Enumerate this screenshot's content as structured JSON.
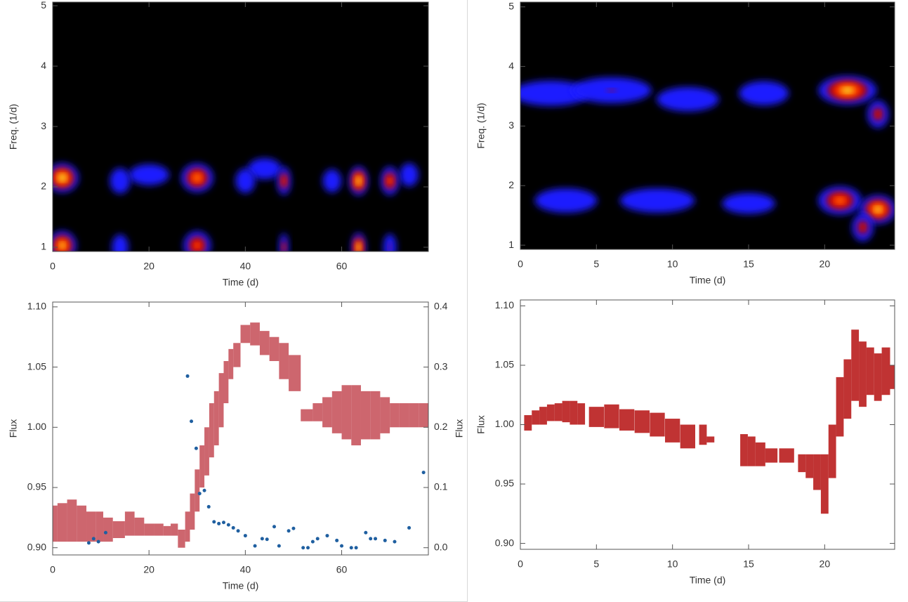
{
  "chart_data": [
    {
      "type": "spectrogram",
      "xlabel": "Time (d)",
      "ylabel": "Freq. (1/d)",
      "xlim": [
        0,
        78
      ],
      "ylim": [
        0.93,
        5.06
      ],
      "xticks": [
        0,
        20,
        40,
        60
      ],
      "yticks": [
        1,
        2,
        3,
        4,
        5
      ],
      "blobs": [
        {
          "x": 20,
          "y": 2.2,
          "w": 12,
          "intensity": 0.15
        },
        {
          "x": 44,
          "y": 2.3,
          "w": 10,
          "intensity": 0.15
        },
        {
          "x": 58,
          "y": 2.1,
          "w": 5,
          "intensity": 0.2
        },
        {
          "x": 74,
          "y": 2.2,
          "w": 5,
          "intensity": 0.2
        },
        {
          "x": 2,
          "y": 2.15,
          "w": 7,
          "intensity": 1.0
        },
        {
          "x": 2,
          "y": 1.03,
          "w": 6,
          "intensity": 0.95
        },
        {
          "x": 14,
          "y": 2.1,
          "w": 5,
          "intensity": 0.3
        },
        {
          "x": 14,
          "y": 1.0,
          "w": 4,
          "intensity": 0.3
        },
        {
          "x": 30,
          "y": 2.15,
          "w": 7,
          "intensity": 0.85
        },
        {
          "x": 30,
          "y": 1.03,
          "w": 6,
          "intensity": 0.75
        },
        {
          "x": 40,
          "y": 2.1,
          "w": 5,
          "intensity": 0.25
        },
        {
          "x": 48,
          "y": 2.1,
          "w": 3,
          "intensity": 0.7
        },
        {
          "x": 48,
          "y": 1.0,
          "w": 2,
          "intensity": 0.6
        },
        {
          "x": 63.5,
          "y": 2.1,
          "w": 4,
          "intensity": 1.0
        },
        {
          "x": 63.5,
          "y": 1.0,
          "w": 3,
          "intensity": 1.0
        },
        {
          "x": 70,
          "y": 2.1,
          "w": 4,
          "intensity": 0.75
        },
        {
          "x": 70,
          "y": 1.0,
          "w": 3,
          "intensity": 0.4
        }
      ]
    },
    {
      "type": "spectrogram",
      "xlabel": "Time (d)",
      "ylabel": "Freq. (1/d)",
      "xlim": [
        0,
        24.6
      ],
      "ylim": [
        0.93,
        5.08
      ],
      "xticks": [
        0,
        5,
        10,
        15,
        20
      ],
      "yticks": [
        1,
        2,
        3,
        4,
        5
      ],
      "blobs": [
        {
          "x": 2,
          "y": 3.55,
          "w": 6,
          "intensity": 0.3
        },
        {
          "x": 6,
          "y": 3.6,
          "w": 6,
          "intensity": 0.35
        },
        {
          "x": 11,
          "y": 3.45,
          "w": 5,
          "intensity": 0.25
        },
        {
          "x": 16,
          "y": 3.55,
          "w": 4,
          "intensity": 0.25
        },
        {
          "x": 3,
          "y": 1.75,
          "w": 5,
          "intensity": 0.25
        },
        {
          "x": 9,
          "y": 1.75,
          "w": 6,
          "intensity": 0.25
        },
        {
          "x": 15,
          "y": 1.7,
          "w": 5,
          "intensity": 0.15
        },
        {
          "x": 21.5,
          "y": 3.6,
          "w": 4,
          "intensity": 0.95
        },
        {
          "x": 23.5,
          "y": 3.2,
          "w": 1.5,
          "intensity": 0.6
        },
        {
          "x": 21,
          "y": 1.75,
          "w": 3,
          "intensity": 0.8
        },
        {
          "x": 23.5,
          "y": 1.6,
          "w": 2.5,
          "intensity": 0.95
        },
        {
          "x": 22.5,
          "y": 1.3,
          "w": 1.5,
          "intensity": 0.6
        }
      ]
    },
    {
      "type": "lightcurve",
      "xlabel": "Time (d)",
      "ylabel": "Flux",
      "y2label": "Flux",
      "xlim": [
        0,
        78
      ],
      "ylim": [
        0.894,
        1.104
      ],
      "y2lim": [
        -0.012,
        0.408
      ],
      "xticks": [
        0,
        20,
        40,
        60
      ],
      "yticks": [
        {
          "value": 0.9,
          "label": "0.90"
        },
        {
          "value": 0.95,
          "label": "0.95"
        },
        {
          "value": 1.0,
          "label": "1.00"
        },
        {
          "value": 1.05,
          "label": "1.05"
        },
        {
          "value": 1.1,
          "label": "1.10"
        }
      ],
      "y2ticks": [
        {
          "value": 0,
          "label": "0.0"
        },
        0.1,
        0.2,
        0.3,
        0.4
      ],
      "series": [
        {
          "color": "#c0404a",
          "x": [
            0,
            2,
            4,
            6,
            8,
            10,
            11,
            14,
            16,
            18,
            20,
            22,
            24,
            25,
            27,
            28,
            29,
            30,
            31,
            32,
            33,
            34,
            35,
            36,
            37,
            38,
            40,
            42,
            44,
            46,
            48,
            50,
            53,
            55,
            57,
            59,
            61,
            63,
            65,
            67,
            69,
            71,
            73,
            75,
            77
          ],
          "low": [
            0.905,
            0.905,
            0.905,
            0.905,
            0.905,
            0.905,
            0.905,
            0.908,
            0.91,
            0.91,
            0.91,
            0.91,
            0.91,
            0.91,
            0.9,
            0.905,
            0.915,
            0.93,
            0.95,
            0.96,
            0.975,
            0.985,
            1.0,
            1.02,
            1.04,
            1.05,
            1.07,
            1.068,
            1.06,
            1.055,
            1.04,
            1.03,
            1.005,
            1.005,
            1.0,
            0.995,
            0.99,
            0.985,
            0.99,
            0.99,
            0.995,
            1.0,
            1.0,
            1.0,
            1.0
          ],
          "high": [
            0.935,
            0.937,
            0.94,
            0.935,
            0.93,
            0.93,
            0.925,
            0.922,
            0.93,
            0.925,
            0.92,
            0.92,
            0.918,
            0.92,
            0.915,
            0.93,
            0.945,
            0.965,
            0.985,
            1.0,
            1.02,
            1.03,
            1.045,
            1.055,
            1.065,
            1.07,
            1.085,
            1.087,
            1.08,
            1.075,
            1.07,
            1.06,
            1.015,
            1.02,
            1.025,
            1.03,
            1.035,
            1.035,
            1.03,
            1.03,
            1.025,
            1.02,
            1.02,
            1.02,
            1.02
          ]
        },
        {
          "color": "#1f5fa0",
          "axis": "y2",
          "x": [
            7.5,
            8.5,
            9.5,
            11,
            28,
            28.8,
            29.8,
            30.5,
            31.5,
            32.4,
            33.5,
            34.5,
            35.5,
            36.5,
            37.5,
            38.5,
            40,
            42,
            43.5,
            44.5,
            46,
            47,
            49,
            50,
            52,
            53,
            54,
            55,
            57,
            59,
            60,
            62,
            63,
            65,
            66,
            67,
            69,
            71,
            74,
            77
          ],
          "values": [
            0.008,
            0.015,
            0.01,
            0.025,
            0.285,
            0.21,
            0.165,
            0.09,
            0.095,
            0.068,
            0.043,
            0.04,
            0.042,
            0.038,
            0.033,
            0.028,
            0.02,
            0.003,
            0.015,
            0.014,
            0.035,
            0.003,
            0.028,
            0.032,
            0.0,
            0.0,
            0.01,
            0.015,
            0.02,
            0.012,
            0.003,
            0.0,
            0.0,
            0.025,
            0.015,
            0.015,
            0.012,
            0.01,
            0.033,
            0.125
          ]
        }
      ]
    },
    {
      "type": "lightcurve",
      "xlabel": "Time (d)",
      "ylabel": "Flux",
      "xlim": [
        0,
        24.6
      ],
      "ylim": [
        0.895,
        1.105
      ],
      "xticks": [
        0,
        5,
        10,
        15,
        20
      ],
      "yticks": [
        {
          "value": 0.9,
          "label": "0.90"
        },
        {
          "value": 0.95,
          "label": "0.95"
        },
        {
          "value": 1.0,
          "label": "1.00"
        },
        {
          "value": 1.05,
          "label": "1.05"
        },
        {
          "value": 1.1,
          "label": "1.10"
        }
      ],
      "series": [
        {
          "color": "#b00000",
          "x": [
            0.5,
            1,
            1.5,
            2,
            2.5,
            3,
            3.5,
            4,
            5,
            6,
            7,
            8,
            9,
            10,
            11,
            12,
            12.5,
            14.7,
            15.2,
            15.7,
            16.5,
            17.5,
            18.5,
            19,
            19.5,
            20,
            20.5,
            21,
            21.5,
            22,
            22.5,
            23,
            23.5,
            24,
            24.6
          ],
          "low": [
            0.995,
            1.0,
            1.0,
            1.003,
            1.003,
            1.002,
            1.0,
            1.0,
            0.998,
            0.997,
            0.995,
            0.993,
            0.99,
            0.985,
            0.98,
            0.983,
            0.985,
            0.965,
            0.965,
            0.965,
            0.968,
            0.968,
            0.96,
            0.955,
            0.945,
            0.925,
            0.955,
            0.99,
            1.005,
            1.02,
            1.015,
            1.025,
            1.02,
            1.025,
            1.03
          ],
          "high": [
            1.008,
            1.012,
            1.015,
            1.017,
            1.018,
            1.02,
            1.02,
            1.018,
            1.015,
            1.017,
            1.013,
            1.012,
            1.01,
            1.005,
            1.0,
            1.0,
            0.99,
            0.992,
            0.99,
            0.985,
            0.98,
            0.98,
            0.975,
            0.975,
            0.975,
            0.975,
            1.0,
            1.04,
            1.055,
            1.08,
            1.07,
            1.065,
            1.06,
            1.065,
            1.05
          ]
        }
      ]
    }
  ]
}
